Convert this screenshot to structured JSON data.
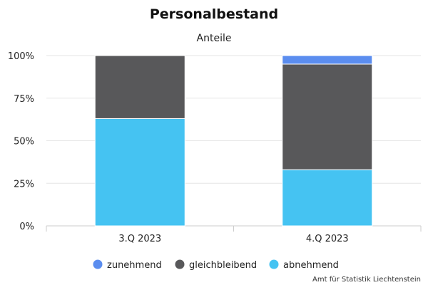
{
  "chart_data": {
    "type": "bar",
    "stacked": true,
    "title": "Personalbestand",
    "subtitle": "Anteile",
    "categories": [
      "3.Q 2023",
      "4.Q 2023"
    ],
    "series": [
      {
        "name": "zunehmend",
        "color": "#5b8def",
        "values": [
          0,
          5
        ]
      },
      {
        "name": "gleichbleibend",
        "color": "#58585a",
        "values": [
          37,
          62
        ]
      },
      {
        "name": "abnehmend",
        "color": "#45c3f2",
        "values": [
          63,
          33
        ]
      }
    ],
    "yticks": [
      "0%",
      "25%",
      "50%",
      "75%",
      "100%"
    ],
    "ylim": [
      0,
      100
    ],
    "grid": true,
    "legend_position": "bottom",
    "credit": "Amt für Statistik Liechtenstein"
  }
}
